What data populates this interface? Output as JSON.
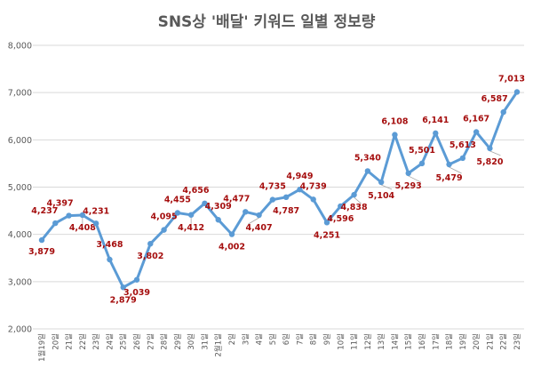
{
  "chart_data": {
    "type": "line",
    "title": "SNS상 '배달' 키워드 일별 정보량",
    "xlabel": "",
    "ylabel": "",
    "ylim": [
      2000,
      8000
    ],
    "yticks": [
      "2,000",
      "3,000",
      "4,000",
      "5,000",
      "6,000",
      "7,000",
      "8,000"
    ],
    "grid": true,
    "color": "#5b9bd5",
    "label_color": "#a50e0e",
    "categories": [
      "1월19일",
      "20일",
      "21일",
      "22일",
      "23일",
      "24일",
      "25일",
      "26일",
      "27일",
      "28일",
      "29일",
      "30일",
      "31일",
      "2월1일",
      "2일",
      "3일",
      "4일",
      "5일",
      "6일",
      "7일",
      "8일",
      "9일",
      "10일",
      "11일",
      "12일",
      "13일",
      "14일",
      "15일",
      "16일",
      "17일",
      "18일",
      "19일",
      "20일",
      "21일",
      "22일",
      "23일"
    ],
    "values": [
      3879,
      4237,
      4397,
      4408,
      4231,
      3468,
      2879,
      3039,
      3802,
      4095,
      4455,
      4412,
      4656,
      4309,
      4002,
      4477,
      4407,
      4735,
      4787,
      4949,
      4739,
      4251,
      4596,
      4838,
      5340,
      5104,
      6108,
      5293,
      5501,
      6141,
      5479,
      5613,
      6167,
      5820,
      6587,
      7013
    ],
    "value_labels": [
      "3,879",
      "4,237",
      "4,397",
      "4,408",
      "4,231",
      "3,468",
      "2,879",
      "3,039",
      "3,802",
      "4,095",
      "4,455",
      "4,412",
      "4,656",
      "4,309",
      "4,002",
      "4,477",
      "4,407",
      "4,735",
      "4,787",
      "4,949",
      "4,739",
      "4,251",
      "4,596",
      "4,838",
      "5,340",
      "5,104",
      "6,108",
      "5,293",
      "5,501",
      "6,141",
      "5,479",
      "5,613",
      "6,167",
      "5,820",
      "6,587",
      "7,013"
    ]
  }
}
